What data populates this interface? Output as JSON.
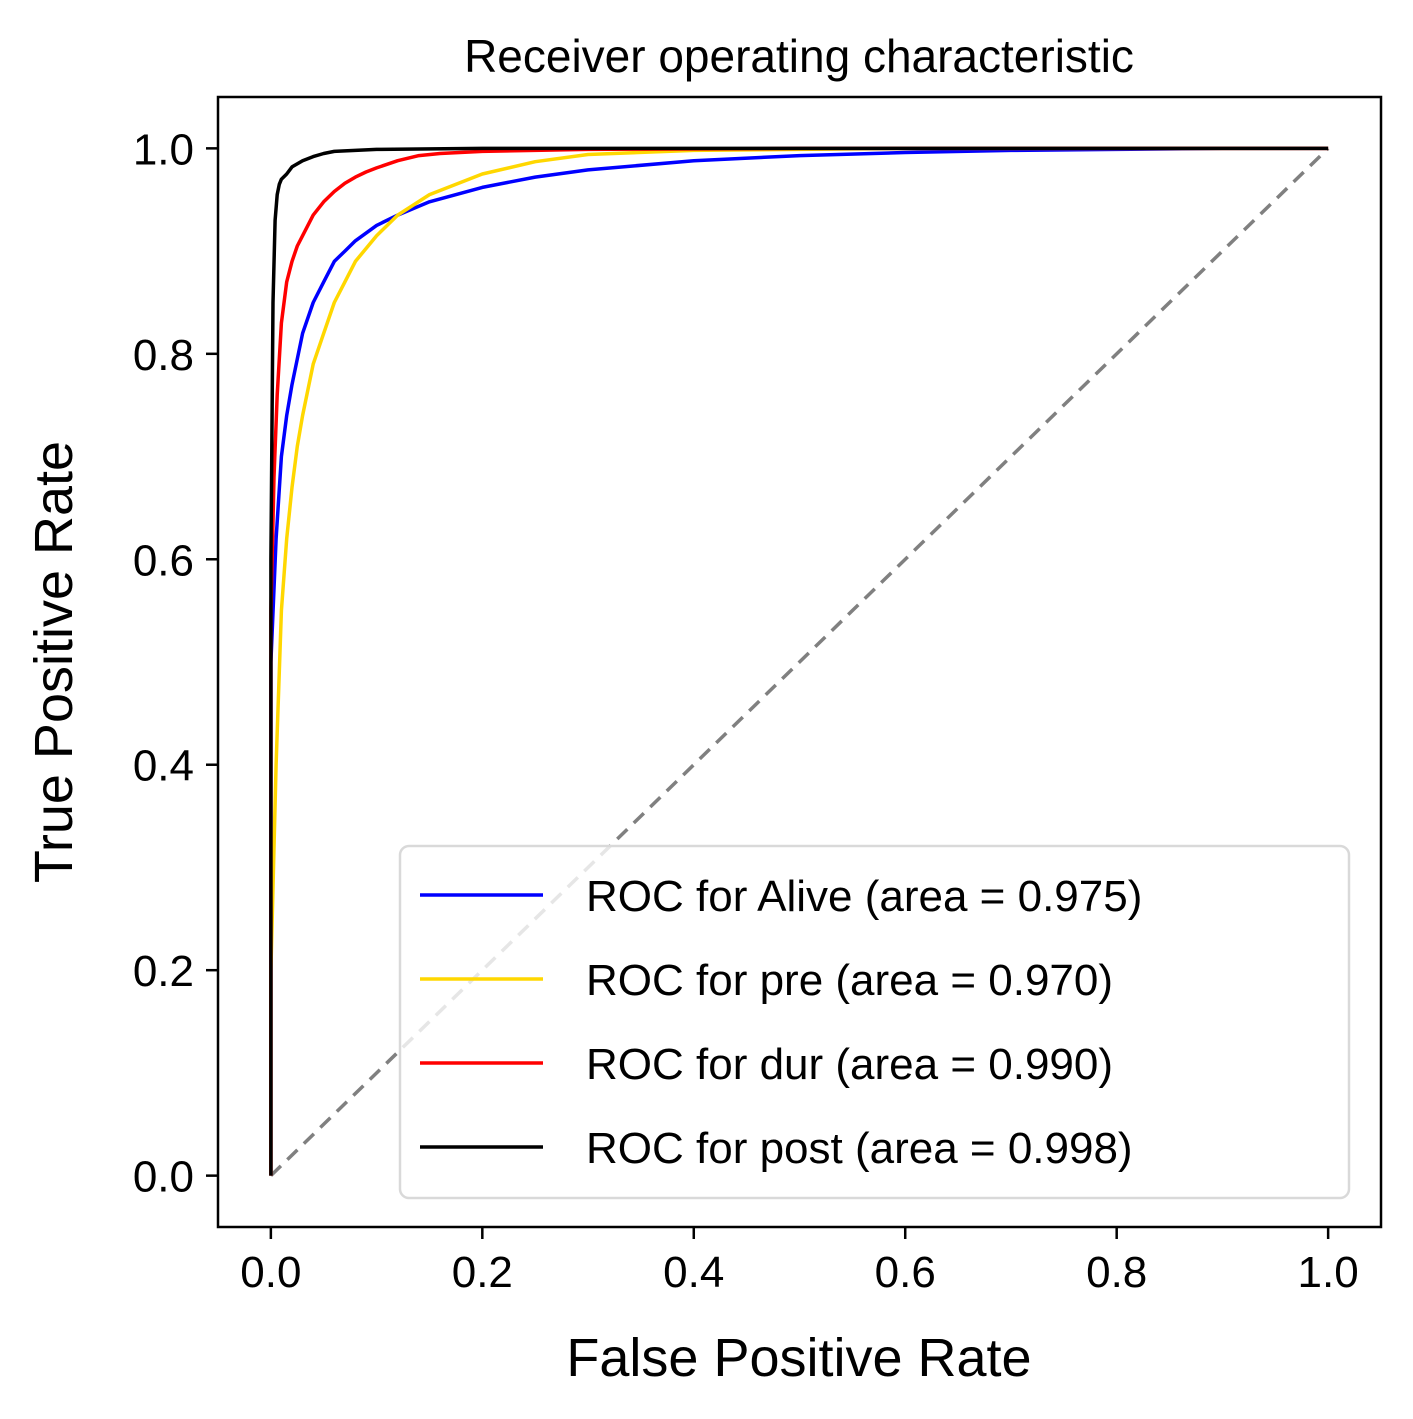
{
  "chart_data": {
    "type": "line",
    "title": "Receiver operating characteristic",
    "xlabel": "False Positive Rate",
    "ylabel": "True Positive Rate",
    "xlim": [
      -0.05,
      1.05
    ],
    "ylim": [
      -0.05,
      1.05
    ],
    "xticks": [
      0.0,
      0.2,
      0.4,
      0.6,
      0.8,
      1.0
    ],
    "yticks": [
      0.0,
      0.2,
      0.4,
      0.6,
      0.8,
      1.0
    ],
    "xtick_labels": [
      "0.0",
      "0.2",
      "0.4",
      "0.6",
      "0.8",
      "1.0"
    ],
    "ytick_labels": [
      "0.0",
      "0.2",
      "0.4",
      "0.6",
      "0.8",
      "1.0"
    ],
    "grid": false,
    "legend_position": "lower right",
    "series": [
      {
        "name": "ROC for Alive (area = 0.975)",
        "color": "#0000ff",
        "x": [
          0,
          0,
          0.005,
          0.01,
          0.015,
          0.02,
          0.03,
          0.04,
          0.05,
          0.06,
          0.07,
          0.08,
          0.1,
          0.12,
          0.15,
          0.2,
          0.25,
          0.3,
          0.4,
          0.5,
          0.6,
          0.7,
          0.8,
          0.9,
          1.0
        ],
        "y": [
          0,
          0.5,
          0.62,
          0.7,
          0.74,
          0.77,
          0.82,
          0.85,
          0.87,
          0.89,
          0.9,
          0.91,
          0.925,
          0.935,
          0.948,
          0.962,
          0.972,
          0.979,
          0.988,
          0.993,
          0.996,
          0.998,
          0.999,
          1.0,
          1.0
        ]
      },
      {
        "name": "ROC for pre (area = 0.970)",
        "color": "#ffd700",
        "x": [
          0,
          0,
          0.005,
          0.01,
          0.015,
          0.02,
          0.025,
          0.03,
          0.04,
          0.05,
          0.06,
          0.07,
          0.08,
          0.1,
          0.12,
          0.15,
          0.2,
          0.25,
          0.3,
          0.4,
          0.5,
          0.6,
          0.8,
          1.0
        ],
        "y": [
          0,
          0.2,
          0.4,
          0.55,
          0.62,
          0.67,
          0.71,
          0.74,
          0.79,
          0.82,
          0.85,
          0.87,
          0.89,
          0.915,
          0.935,
          0.955,
          0.975,
          0.987,
          0.994,
          0.998,
          0.999,
          1.0,
          1.0,
          1.0
        ]
      },
      {
        "name": "ROC for dur (area = 0.990)",
        "color": "#ff0000",
        "x": [
          0,
          0,
          0.003,
          0.006,
          0.01,
          0.015,
          0.02,
          0.025,
          0.03,
          0.04,
          0.05,
          0.06,
          0.07,
          0.08,
          0.09,
          0.1,
          0.12,
          0.14,
          0.16,
          0.2,
          0.3,
          0.5,
          1.0
        ],
        "y": [
          0,
          0.55,
          0.68,
          0.76,
          0.83,
          0.87,
          0.89,
          0.905,
          0.915,
          0.935,
          0.948,
          0.958,
          0.966,
          0.972,
          0.977,
          0.981,
          0.988,
          0.993,
          0.995,
          0.997,
          0.999,
          1.0,
          1.0
        ]
      },
      {
        "name": "ROC for post (area = 0.998)",
        "color": "#000000",
        "x": [
          0,
          0,
          0.002,
          0.004,
          0.006,
          0.008,
          0.01,
          0.015,
          0.02,
          0.03,
          0.04,
          0.05,
          0.06,
          0.08,
          0.1,
          0.2,
          0.5,
          1.0
        ],
        "y": [
          0,
          0.6,
          0.85,
          0.93,
          0.955,
          0.965,
          0.97,
          0.975,
          0.982,
          0.988,
          0.992,
          0.995,
          0.997,
          0.998,
          0.999,
          1.0,
          1.0,
          1.0
        ]
      }
    ],
    "reference_line": {
      "x": [
        0,
        1
      ],
      "y": [
        0,
        1
      ],
      "color": "#808080",
      "style": "dashed"
    }
  }
}
